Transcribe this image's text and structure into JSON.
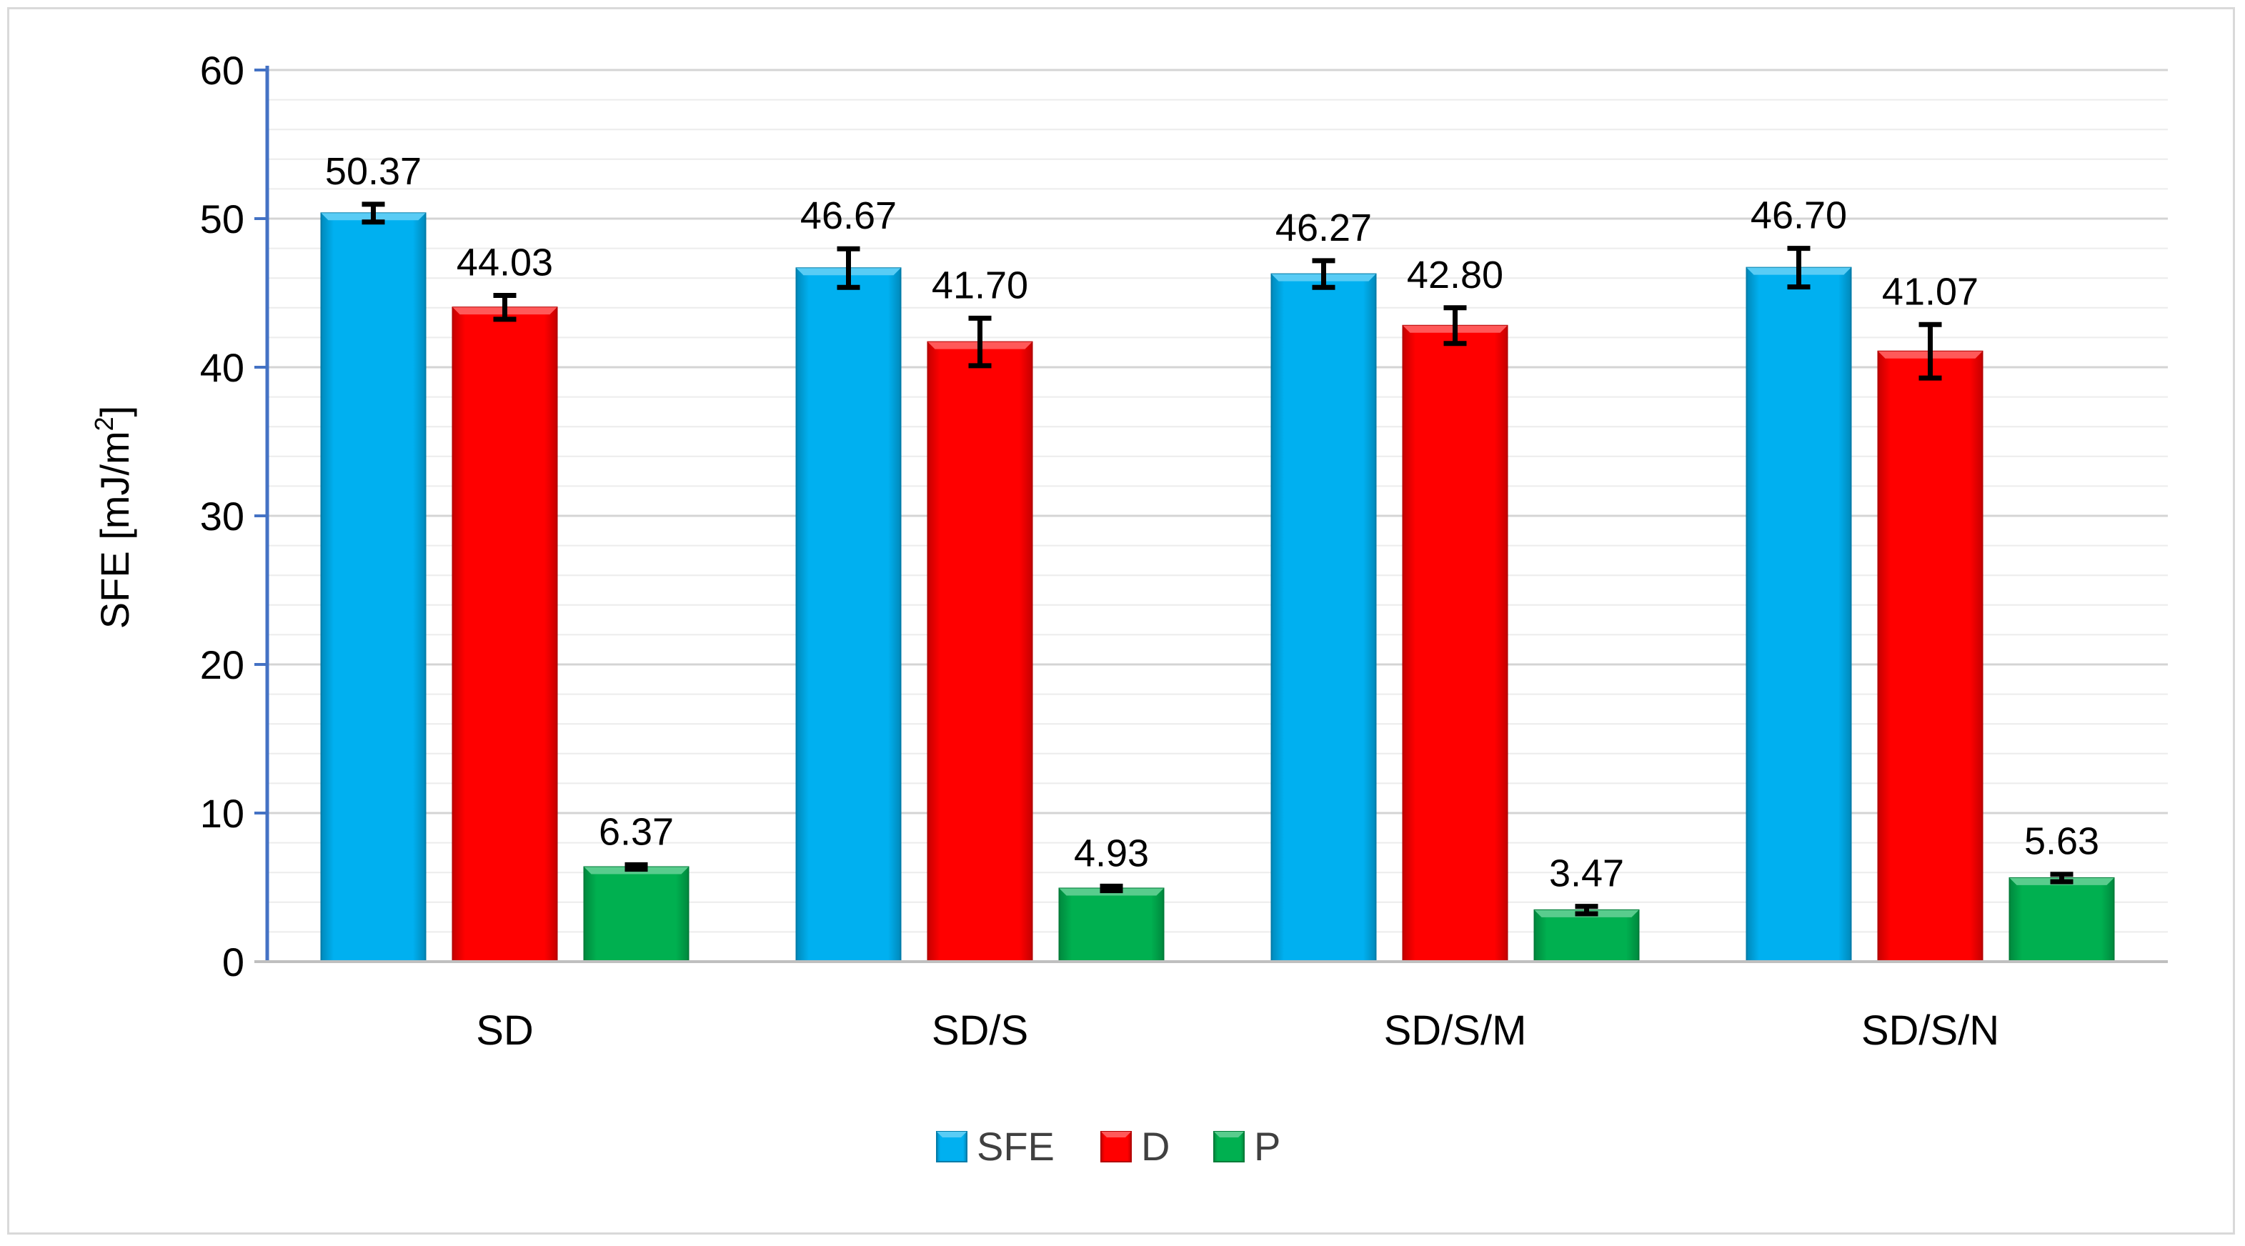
{
  "chart_data": {
    "type": "bar",
    "title": "",
    "xlabel": "",
    "ylabel": "SFE [mJ/m",
    "ylabel_superscript": "2",
    "ylabel_suffix": "]",
    "ylim": [
      0,
      60
    ],
    "yticks": [
      "0",
      "10",
      "20",
      "30",
      "40",
      "50",
      "60"
    ],
    "ytick_values": [
      0,
      10,
      20,
      30,
      40,
      50,
      60
    ],
    "minor_grid_step": 2,
    "categories": [
      "SD",
      "SD/S",
      "SD/S/M",
      "SD/S/N"
    ],
    "series": [
      {
        "name": "SFE",
        "color": "#00b0f0",
        "values": [
          50.37,
          46.67,
          46.27,
          46.7
        ],
        "labels": [
          "50.37",
          "46.67",
          "46.27",
          "46.70"
        ],
        "errors": [
          0.6,
          1.3,
          0.9,
          1.3
        ]
      },
      {
        "name": "D",
        "color": "#ff0000",
        "values": [
          44.03,
          41.7,
          42.8,
          41.07
        ],
        "labels": [
          "44.03",
          "41.70",
          "42.80",
          "41.07"
        ],
        "errors": [
          0.8,
          1.6,
          1.2,
          1.8
        ]
      },
      {
        "name": "P",
        "color": "#00b050",
        "values": [
          6.37,
          4.93,
          3.47,
          5.63
        ],
        "labels": [
          "6.37",
          "4.93",
          "3.47",
          "5.63"
        ],
        "errors": [
          0.15,
          0.15,
          0.25,
          0.25
        ]
      }
    ],
    "legend": {
      "position": "bottom",
      "entries": [
        "SFE",
        "D",
        "P"
      ]
    },
    "axis_color": "#4472c4",
    "grid": true
  }
}
